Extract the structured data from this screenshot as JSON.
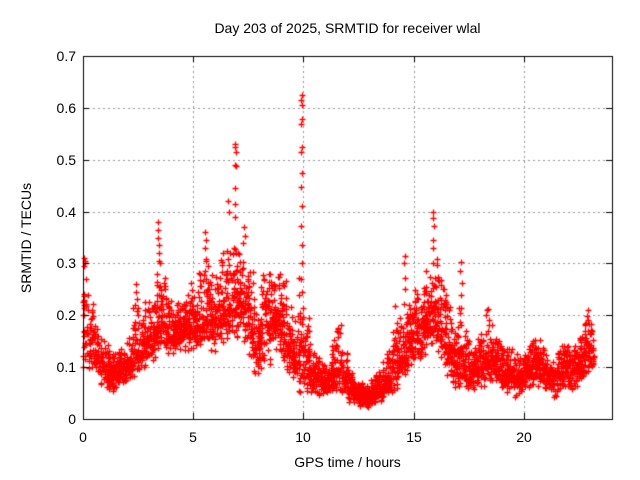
{
  "chart": {
    "title": "Day 203 of 2025, SRMTID for receiver wlal",
    "xlabel": "GPS time / hours",
    "ylabel": "SRMTID / TECUs",
    "xlim": [
      0,
      24
    ],
    "ylim": [
      0,
      0.7
    ],
    "x_ticks": [
      0,
      5,
      10,
      15,
      20
    ],
    "y_ticks": [
      0,
      0.1,
      0.2,
      0.3,
      0.4,
      0.5,
      0.6,
      0.7
    ],
    "grid": true,
    "legend": null,
    "colors": {
      "marker": "#ff0000",
      "axis": "#000000",
      "grid": "#999999",
      "text": "#000000",
      "background": "#ffffff"
    },
    "marker": {
      "shape": "plus",
      "size": 7,
      "line_width": 1.3
    }
  },
  "chart_data": {
    "type": "scatter",
    "title": "Day 203 of 2025, SRMTID for receiver wlal",
    "xlabel": "GPS time / hours",
    "ylabel": "SRMTID / TECUs",
    "xlim": [
      0,
      24
    ],
    "ylim": [
      0,
      0.7
    ],
    "x_unit": "hours",
    "y_unit": "TECUs",
    "series_name": "SRMTID",
    "representation": "dense scatter approximated by per-quarter-hour density bins [t_start, t_end, y_min, y_median, y_max, n_points] plus explicit outlier spike points [hour, value]",
    "seed": 20325,
    "density_bins": [
      [
        0,
        0.25,
        0.07,
        0.16,
        0.27,
        30
      ],
      [
        0.25,
        0.5,
        0.08,
        0.15,
        0.25,
        35
      ],
      [
        0.5,
        0.75,
        0.08,
        0.13,
        0.2,
        35
      ],
      [
        0.75,
        1,
        0.06,
        0.11,
        0.16,
        35
      ],
      [
        1,
        1.25,
        0.05,
        0.095,
        0.15,
        40
      ],
      [
        1.25,
        1.5,
        0.05,
        0.09,
        0.14,
        40
      ],
      [
        1.5,
        1.75,
        0.06,
        0.095,
        0.14,
        40
      ],
      [
        1.75,
        2,
        0.06,
        0.1,
        0.15,
        40
      ],
      [
        2,
        2.25,
        0.07,
        0.11,
        0.17,
        40
      ],
      [
        2.25,
        2.5,
        0.08,
        0.12,
        0.26,
        40
      ],
      [
        2.5,
        2.75,
        0.09,
        0.13,
        0.22,
        40
      ],
      [
        2.75,
        3,
        0.1,
        0.15,
        0.25,
        40
      ],
      [
        3,
        3.25,
        0.11,
        0.16,
        0.27,
        40
      ],
      [
        3.25,
        3.5,
        0.12,
        0.18,
        0.3,
        40
      ],
      [
        3.5,
        3.75,
        0.13,
        0.19,
        0.3,
        40
      ],
      [
        3.75,
        4,
        0.12,
        0.17,
        0.25,
        40
      ],
      [
        4,
        4.25,
        0.12,
        0.16,
        0.22,
        40
      ],
      [
        4.25,
        4.5,
        0.12,
        0.17,
        0.23,
        40
      ],
      [
        4.5,
        4.75,
        0.13,
        0.17,
        0.25,
        40
      ],
      [
        4.75,
        5,
        0.13,
        0.18,
        0.28,
        40
      ],
      [
        5,
        5.25,
        0.13,
        0.18,
        0.26,
        40
      ],
      [
        5.25,
        5.5,
        0.13,
        0.18,
        0.3,
        40
      ],
      [
        5.5,
        5.75,
        0.14,
        0.2,
        0.33,
        40
      ],
      [
        5.75,
        6,
        0.13,
        0.19,
        0.28,
        40
      ],
      [
        6,
        6.25,
        0.14,
        0.2,
        0.3,
        40
      ],
      [
        6.25,
        6.5,
        0.14,
        0.21,
        0.33,
        40
      ],
      [
        6.5,
        6.75,
        0.15,
        0.22,
        0.37,
        40
      ],
      [
        6.75,
        7,
        0.15,
        0.23,
        0.37,
        40
      ],
      [
        7,
        7.25,
        0.15,
        0.24,
        0.35,
        40
      ],
      [
        7.25,
        7.5,
        0.14,
        0.22,
        0.33,
        40
      ],
      [
        7.5,
        7.75,
        0.1,
        0.18,
        0.3,
        40
      ],
      [
        7.75,
        8,
        0.08,
        0.15,
        0.25,
        40
      ],
      [
        8,
        8.25,
        0.08,
        0.16,
        0.28,
        40
      ],
      [
        8.25,
        8.5,
        0.1,
        0.18,
        0.3,
        40
      ],
      [
        8.5,
        8.75,
        0.12,
        0.2,
        0.31,
        40
      ],
      [
        8.75,
        9,
        0.12,
        0.2,
        0.31,
        40
      ],
      [
        9,
        9.25,
        0.1,
        0.17,
        0.27,
        40
      ],
      [
        9.25,
        9.5,
        0.08,
        0.14,
        0.22,
        40
      ],
      [
        9.5,
        9.75,
        0.06,
        0.12,
        0.2,
        40
      ],
      [
        9.75,
        10,
        0.05,
        0.13,
        0.28,
        40
      ],
      [
        10,
        10.25,
        0.05,
        0.1,
        0.22,
        40
      ],
      [
        10.25,
        10.5,
        0.04,
        0.09,
        0.15,
        40
      ],
      [
        10.5,
        10.75,
        0.04,
        0.08,
        0.13,
        40
      ],
      [
        10.75,
        11,
        0.04,
        0.07,
        0.12,
        40
      ],
      [
        11,
        11.25,
        0.04,
        0.07,
        0.12,
        40
      ],
      [
        11.25,
        11.5,
        0.05,
        0.09,
        0.17,
        40
      ],
      [
        11.5,
        11.75,
        0.05,
        0.1,
        0.2,
        40
      ],
      [
        11.75,
        12,
        0.04,
        0.08,
        0.14,
        40
      ],
      [
        12,
        12.25,
        0.03,
        0.06,
        0.1,
        45
      ],
      [
        12.25,
        12.5,
        0.025,
        0.05,
        0.08,
        50
      ],
      [
        12.5,
        12.75,
        0.02,
        0.045,
        0.07,
        55
      ],
      [
        12.75,
        13,
        0.02,
        0.04,
        0.07,
        55
      ],
      [
        13,
        13.25,
        0.025,
        0.05,
        0.08,
        50
      ],
      [
        13.25,
        13.5,
        0.03,
        0.055,
        0.1,
        45
      ],
      [
        13.5,
        13.75,
        0.03,
        0.06,
        0.12,
        40
      ],
      [
        13.75,
        14,
        0.04,
        0.08,
        0.15,
        40
      ],
      [
        14,
        14.25,
        0.05,
        0.1,
        0.23,
        40
      ],
      [
        14.25,
        14.5,
        0.06,
        0.11,
        0.2,
        40
      ],
      [
        14.5,
        14.75,
        0.08,
        0.13,
        0.25,
        40
      ],
      [
        14.75,
        15,
        0.1,
        0.15,
        0.24,
        40
      ],
      [
        15,
        15.25,
        0.1,
        0.17,
        0.28,
        40
      ],
      [
        15.25,
        15.5,
        0.1,
        0.16,
        0.26,
        40
      ],
      [
        15.5,
        15.75,
        0.12,
        0.18,
        0.3,
        40
      ],
      [
        15.75,
        16,
        0.12,
        0.19,
        0.32,
        40
      ],
      [
        16,
        16.25,
        0.12,
        0.19,
        0.32,
        40
      ],
      [
        16.25,
        16.5,
        0.1,
        0.16,
        0.28,
        40
      ],
      [
        16.5,
        16.75,
        0.08,
        0.13,
        0.24,
        40
      ],
      [
        16.75,
        17,
        0.06,
        0.11,
        0.2,
        40
      ],
      [
        17,
        17.25,
        0.06,
        0.12,
        0.22,
        40
      ],
      [
        17.25,
        17.5,
        0.05,
        0.1,
        0.18,
        40
      ],
      [
        17.5,
        17.75,
        0.05,
        0.09,
        0.15,
        40
      ],
      [
        17.75,
        18,
        0.06,
        0.1,
        0.16,
        40
      ],
      [
        18,
        18.25,
        0.06,
        0.11,
        0.18,
        40
      ],
      [
        18.25,
        18.5,
        0.07,
        0.12,
        0.24,
        40
      ],
      [
        18.5,
        18.75,
        0.07,
        0.11,
        0.2,
        40
      ],
      [
        18.75,
        19,
        0.06,
        0.1,
        0.16,
        40
      ],
      [
        19,
        19.25,
        0.05,
        0.09,
        0.15,
        40
      ],
      [
        19.25,
        19.5,
        0.05,
        0.085,
        0.14,
        40
      ],
      [
        19.5,
        19.75,
        0.04,
        0.08,
        0.13,
        40
      ],
      [
        19.75,
        20,
        0.04,
        0.08,
        0.13,
        40
      ],
      [
        20,
        20.25,
        0.05,
        0.09,
        0.14,
        40
      ],
      [
        20.25,
        20.5,
        0.06,
        0.1,
        0.17,
        40
      ],
      [
        20.5,
        20.75,
        0.06,
        0.1,
        0.16,
        40
      ],
      [
        20.75,
        21,
        0.05,
        0.09,
        0.14,
        40
      ],
      [
        21,
        21.25,
        0.05,
        0.08,
        0.13,
        40
      ],
      [
        21.25,
        21.5,
        0.04,
        0.08,
        0.12,
        40
      ],
      [
        21.5,
        21.75,
        0.05,
        0.09,
        0.15,
        40
      ],
      [
        21.75,
        22,
        0.05,
        0.1,
        0.18,
        40
      ],
      [
        22,
        22.25,
        0.05,
        0.09,
        0.14,
        40
      ],
      [
        22.25,
        22.5,
        0.06,
        0.1,
        0.15,
        40
      ],
      [
        22.5,
        22.75,
        0.07,
        0.11,
        0.18,
        40
      ],
      [
        22.75,
        23,
        0.08,
        0.13,
        0.21,
        40
      ],
      [
        23,
        23.2,
        0.09,
        0.14,
        0.2,
        25
      ]
    ],
    "outliers": [
      [
        0.05,
        0.31
      ],
      [
        0.07,
        0.305
      ],
      [
        0.06,
        0.295
      ],
      [
        0.1,
        0.3
      ],
      [
        0.12,
        0.27
      ],
      [
        0.03,
        0.22
      ],
      [
        0.02,
        0.2
      ],
      [
        2.4,
        0.26
      ],
      [
        2.42,
        0.245
      ],
      [
        3.38,
        0.38
      ],
      [
        3.42,
        0.365
      ],
      [
        3.4,
        0.35
      ],
      [
        3.45,
        0.335
      ],
      [
        3.43,
        0.32
      ],
      [
        3.47,
        0.305
      ],
      [
        3.5,
        0.3
      ],
      [
        5.55,
        0.36
      ],
      [
        5.58,
        0.345
      ],
      [
        5.52,
        0.33
      ],
      [
        6.6,
        0.42
      ],
      [
        6.62,
        0.4
      ],
      [
        6.88,
        0.53
      ],
      [
        6.9,
        0.525
      ],
      [
        6.92,
        0.515
      ],
      [
        6.88,
        0.49
      ],
      [
        6.93,
        0.488
      ],
      [
        6.9,
        0.445
      ],
      [
        6.9,
        0.415
      ],
      [
        6.91,
        0.39
      ],
      [
        7.3,
        0.37
      ],
      [
        7.33,
        0.352
      ],
      [
        7.28,
        0.34
      ],
      [
        9.92,
        0.625
      ],
      [
        9.9,
        0.615
      ],
      [
        9.94,
        0.605
      ],
      [
        9.92,
        0.578
      ],
      [
        9.9,
        0.568
      ],
      [
        9.93,
        0.525
      ],
      [
        9.91,
        0.515
      ],
      [
        9.92,
        0.475
      ],
      [
        9.9,
        0.447
      ],
      [
        9.93,
        0.41
      ],
      [
        9.91,
        0.372
      ],
      [
        9.92,
        0.335
      ],
      [
        9.94,
        0.3
      ],
      [
        9.9,
        0.27
      ],
      [
        9.92,
        0.245
      ],
      [
        14.6,
        0.315
      ],
      [
        14.57,
        0.3
      ],
      [
        14.63,
        0.272
      ],
      [
        14.6,
        0.25
      ],
      [
        14.58,
        0.222
      ],
      [
        15.9,
        0.4
      ],
      [
        15.87,
        0.387
      ],
      [
        15.93,
        0.372
      ],
      [
        15.9,
        0.345
      ],
      [
        15.88,
        0.33
      ],
      [
        17.15,
        0.302
      ],
      [
        17.12,
        0.286
      ],
      [
        17.18,
        0.262
      ],
      [
        17.15,
        0.24
      ],
      [
        17.13,
        0.215
      ],
      [
        22.9,
        0.21
      ],
      [
        22.87,
        0.198
      ],
      [
        22.93,
        0.19
      ]
    ]
  }
}
